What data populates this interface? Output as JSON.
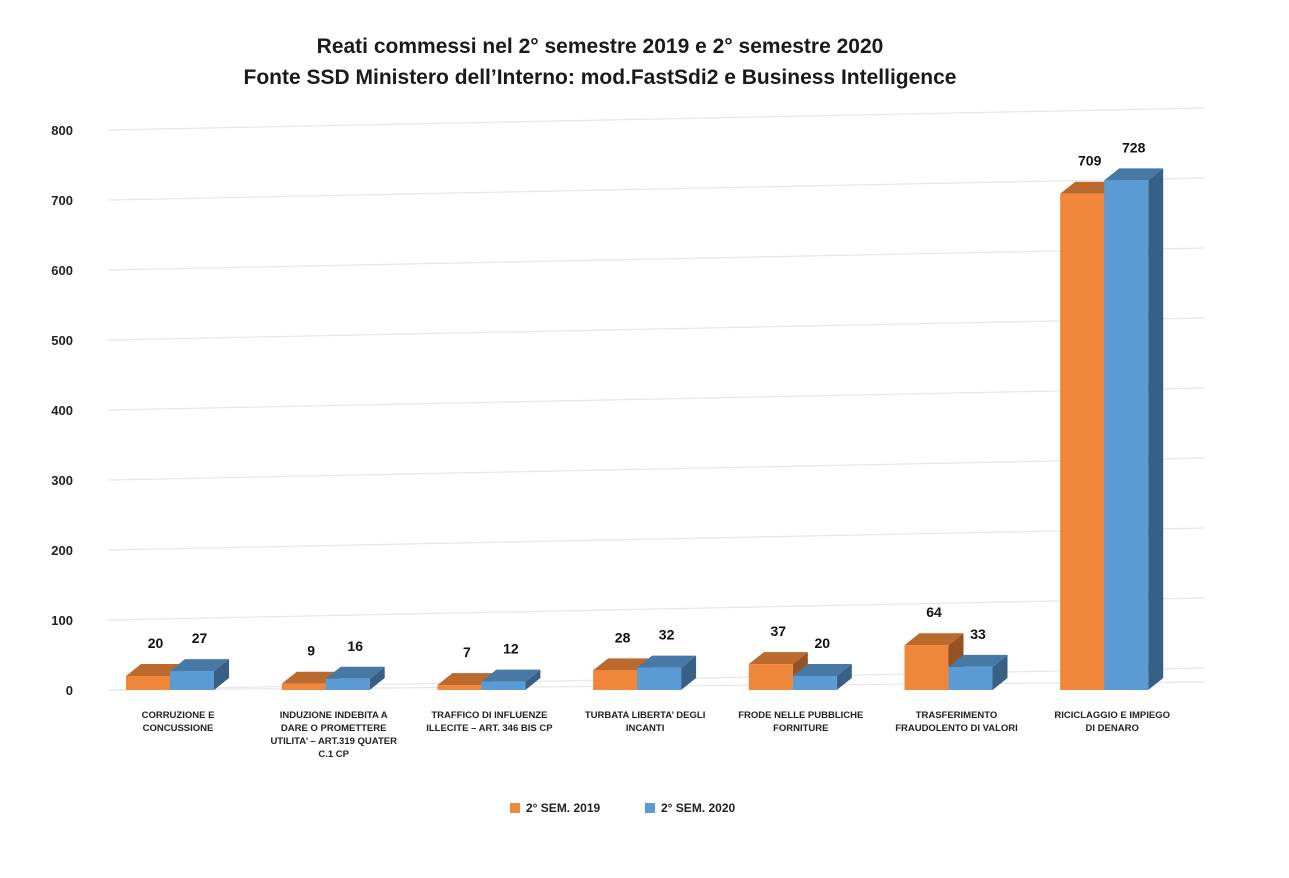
{
  "chart_data": {
    "type": "bar",
    "title": "Reati commessi nel 2° semestre 2019 e 2° semestre 2020",
    "subtitle": "Fonte SSD Ministero dell’Interno: mod.FastSdi2 e Business Intelligence",
    "categories": [
      [
        "CORRUZIONE E",
        "CONCUSSIONE"
      ],
      [
        "INDUZIONE INDEBITA A",
        "DARE O PROMETTERE",
        "UTILITA’ – ART.319 QUATER",
        "C.1 CP"
      ],
      [
        "TRAFFICO DI INFLUENZE",
        "ILLECITE – ART. 346 BIS CP"
      ],
      [
        "TURBATA LIBERTA’ DEGLI",
        "INCANTI"
      ],
      [
        "FRODE NELLE PUBBLICHE",
        "FORNITURE"
      ],
      [
        "TRASFERIMENTO",
        "FRAUDOLENTO DI VALORI"
      ],
      [
        "RICICLAGGIO E IMPIEGO",
        "DI DENARO"
      ]
    ],
    "series": [
      {
        "name": "2° SEM. 2019",
        "color": "#F0863A",
        "values": [
          20,
          9,
          7,
          28,
          37,
          64,
          709
        ]
      },
      {
        "name": "2° SEM. 2020",
        "color": "#5B9BD5",
        "values": [
          27,
          16,
          12,
          32,
          20,
          33,
          728
        ]
      }
    ],
    "ylim": [
      0,
      800
    ],
    "yticks": [
      "0",
      "100",
      "200",
      "300",
      "400",
      "500",
      "600",
      "700",
      "800"
    ],
    "grid": true,
    "legend_position": "bottom"
  }
}
